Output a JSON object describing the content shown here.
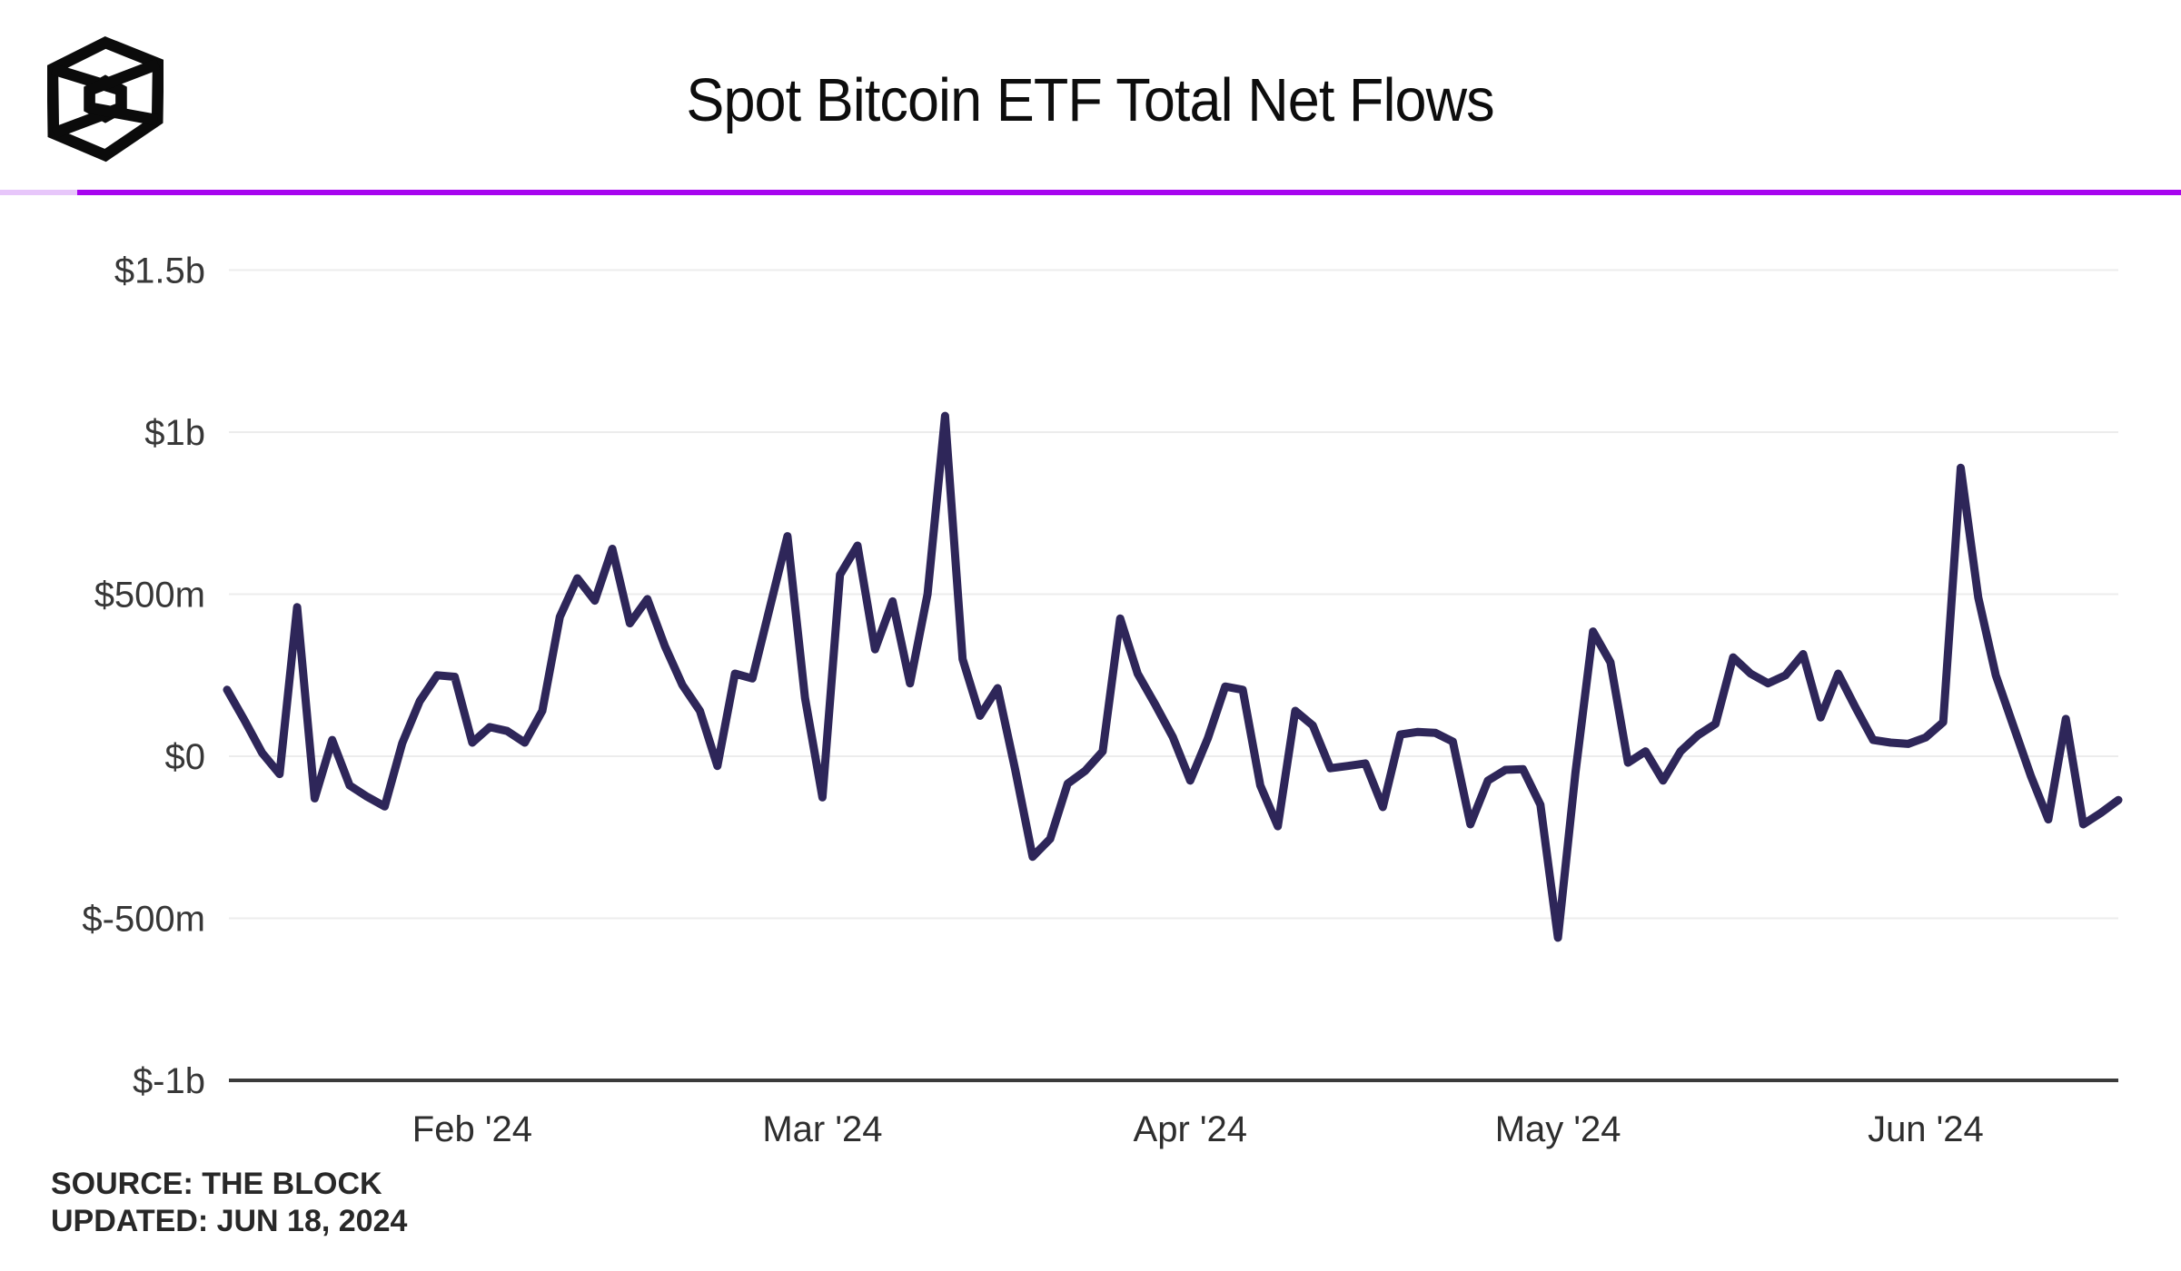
{
  "header": {
    "title": "Spot Bitcoin ETF Total Net Flows",
    "logo": "the-block-logo"
  },
  "footer": {
    "source_label": "SOURCE: THE BLOCK",
    "updated_label": "UPDATED: JUN 18, 2024"
  },
  "colors": {
    "line": "#2e2659",
    "grid": "#ececec",
    "axis": "#3b3b3b",
    "tick_text": "#373737",
    "divider_purple": "#a704ef",
    "divider_light": "#e7c6fa"
  },
  "chart_data": {
    "type": "line",
    "title": "Spot Bitcoin ETF Total Net Flows",
    "unit": "USD millions (daily total net flow)",
    "grid": true,
    "legend_position": "none",
    "ylim": [
      -1000,
      1500
    ],
    "x": [
      "2024-01-11",
      "2024-01-12",
      "2024-01-16",
      "2024-01-17",
      "2024-01-18",
      "2024-01-19",
      "2024-01-22",
      "2024-01-23",
      "2024-01-24",
      "2024-01-25",
      "2024-01-26",
      "2024-01-29",
      "2024-01-30",
      "2024-01-31",
      "2024-02-01",
      "2024-02-02",
      "2024-02-05",
      "2024-02-06",
      "2024-02-07",
      "2024-02-08",
      "2024-02-09",
      "2024-02-12",
      "2024-02-13",
      "2024-02-14",
      "2024-02-15",
      "2024-02-16",
      "2024-02-20",
      "2024-02-21",
      "2024-02-22",
      "2024-02-23",
      "2024-02-26",
      "2024-02-27",
      "2024-02-28",
      "2024-02-29",
      "2024-03-01",
      "2024-03-04",
      "2024-03-05",
      "2024-03-06",
      "2024-03-07",
      "2024-03-08",
      "2024-03-11",
      "2024-03-12",
      "2024-03-13",
      "2024-03-14",
      "2024-03-15",
      "2024-03-18",
      "2024-03-19",
      "2024-03-20",
      "2024-03-21",
      "2024-03-22",
      "2024-03-25",
      "2024-03-26",
      "2024-03-27",
      "2024-03-28",
      "2024-04-01",
      "2024-04-02",
      "2024-04-03",
      "2024-04-04",
      "2024-04-05",
      "2024-04-08",
      "2024-04-09",
      "2024-04-10",
      "2024-04-11",
      "2024-04-12",
      "2024-04-15",
      "2024-04-16",
      "2024-04-17",
      "2024-04-18",
      "2024-04-19",
      "2024-04-22",
      "2024-04-23",
      "2024-04-24",
      "2024-04-25",
      "2024-04-26",
      "2024-04-29",
      "2024-04-30",
      "2024-05-01",
      "2024-05-02",
      "2024-05-03",
      "2024-05-06",
      "2024-05-07",
      "2024-05-08",
      "2024-05-09",
      "2024-05-10",
      "2024-05-13",
      "2024-05-14",
      "2024-05-15",
      "2024-05-16",
      "2024-05-17",
      "2024-05-20",
      "2024-05-21",
      "2024-05-22",
      "2024-05-23",
      "2024-05-24",
      "2024-05-28",
      "2024-05-29",
      "2024-05-30",
      "2024-05-31",
      "2024-06-03",
      "2024-06-04",
      "2024-06-05",
      "2024-06-06",
      "2024-06-07",
      "2024-06-10",
      "2024-06-11",
      "2024-06-12",
      "2024-06-13",
      "2024-06-14",
      "2024-06-17"
    ],
    "values": [
      205,
      110,
      10,
      -55,
      460,
      -130,
      50,
      -90,
      -125,
      -155,
      40,
      170,
      250,
      245,
      42,
      90,
      78,
      42,
      140,
      430,
      549,
      480,
      640,
      410,
      485,
      340,
      220,
      140,
      -30,
      255,
      240,
      460,
      679,
      180,
      -127,
      560,
      650,
      330,
      478,
      225,
      500,
      1050,
      300,
      125,
      210,
      -40,
      -310,
      -255,
      -85,
      -45,
      15,
      425,
      255,
      160,
      60,
      -75,
      55,
      215,
      205,
      -90,
      -216,
      140,
      95,
      -37,
      -30,
      -22,
      -157,
      67,
      75,
      72,
      45,
      -210,
      -75,
      -42,
      -40,
      -150,
      -560,
      -50,
      385,
      290,
      -20,
      15,
      -75,
      15,
      65,
      100,
      305,
      255,
      225,
      250,
      315,
      120,
      255,
      150,
      50,
      42,
      38,
      58,
      105,
      890,
      490,
      250,
      95,
      -60,
      -195,
      115,
      -210,
      -175,
      -135
    ],
    "y_axis": {
      "ticks": [
        {
          "label": "$1.5b",
          "value": 1500
        },
        {
          "label": "$1b",
          "value": 1000
        },
        {
          "label": "$500m",
          "value": 500
        },
        {
          "label": "$0",
          "value": 0
        },
        {
          "label": "$-500m",
          "value": -500
        },
        {
          "label": "$-1b",
          "value": -1000
        }
      ]
    },
    "x_axis": {
      "ticks": [
        {
          "label": "Feb '24",
          "index": 14
        },
        {
          "label": "Mar '24",
          "index": 34
        },
        {
          "label": "Apr '24",
          "index": 55
        },
        {
          "label": "May '24",
          "index": 76
        },
        {
          "label": "Jun '24",
          "index": 97
        }
      ]
    }
  }
}
